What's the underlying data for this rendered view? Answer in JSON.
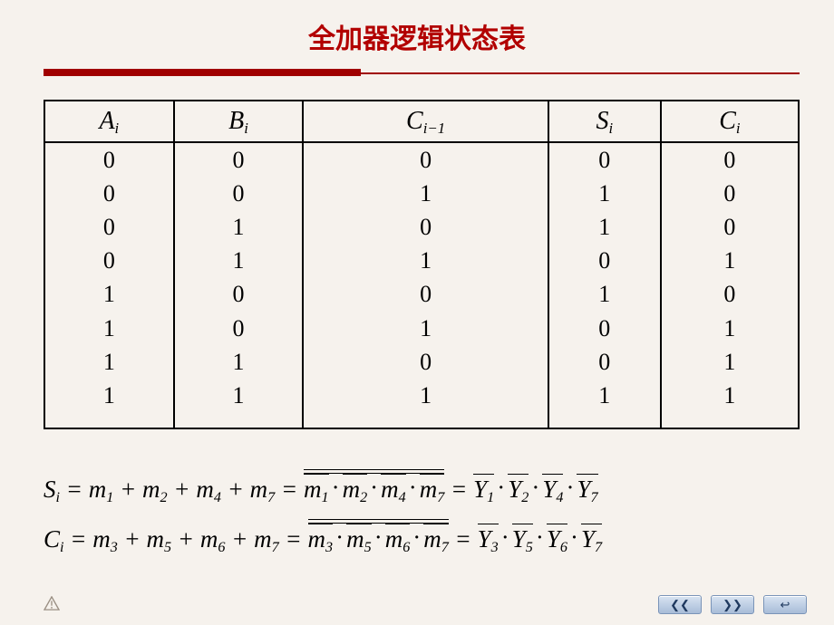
{
  "title": "全加器逻辑状态表",
  "columns": [
    {
      "var": "A",
      "sub": "i"
    },
    {
      "var": "B",
      "sub": "i"
    },
    {
      "var": "C",
      "sub": "i−1"
    },
    {
      "var": "S",
      "sub": "i"
    },
    {
      "var": "C",
      "sub": "i"
    }
  ],
  "rows": [
    [
      "0",
      "0",
      "0",
      "0",
      "0"
    ],
    [
      "0",
      "0",
      "1",
      "1",
      "0"
    ],
    [
      "0",
      "1",
      "0",
      "1",
      "0"
    ],
    [
      "0",
      "1",
      "1",
      "0",
      "1"
    ],
    [
      "1",
      "0",
      "0",
      "1",
      "0"
    ],
    [
      "1",
      "0",
      "1",
      "0",
      "1"
    ],
    [
      "1",
      "1",
      "0",
      "0",
      "1"
    ],
    [
      "1",
      "1",
      "1",
      "1",
      "1"
    ]
  ],
  "eq": {
    "s": {
      "lhs_var": "S",
      "lhs_sub": "i",
      "sum_vars": "m",
      "sum_subs": [
        "1",
        "2",
        "4",
        "7"
      ],
      "prod_vars": "m",
      "prod_subs": [
        "1",
        "2",
        "4",
        "7"
      ],
      "y_subs": [
        "1",
        "2",
        "4",
        "7"
      ]
    },
    "c": {
      "lhs_var": "C",
      "lhs_sub": "i",
      "sum_vars": "m",
      "sum_subs": [
        "3",
        "5",
        "6",
        "7"
      ],
      "prod_vars": "m",
      "prod_subs": [
        "3",
        "5",
        "6",
        "7"
      ],
      "y_subs": [
        "3",
        "5",
        "6",
        "7"
      ]
    }
  },
  "nav": {
    "prev": "❮❮",
    "next": "❯❯",
    "back": "↩"
  },
  "style": {
    "bg": "#f6f2ed",
    "title_color": "#b20000",
    "rule_color": "#a00000",
    "border_color": "#000000",
    "table_fontsize": 26,
    "header_fontsize": 28,
    "eq_fontsize": 27
  }
}
